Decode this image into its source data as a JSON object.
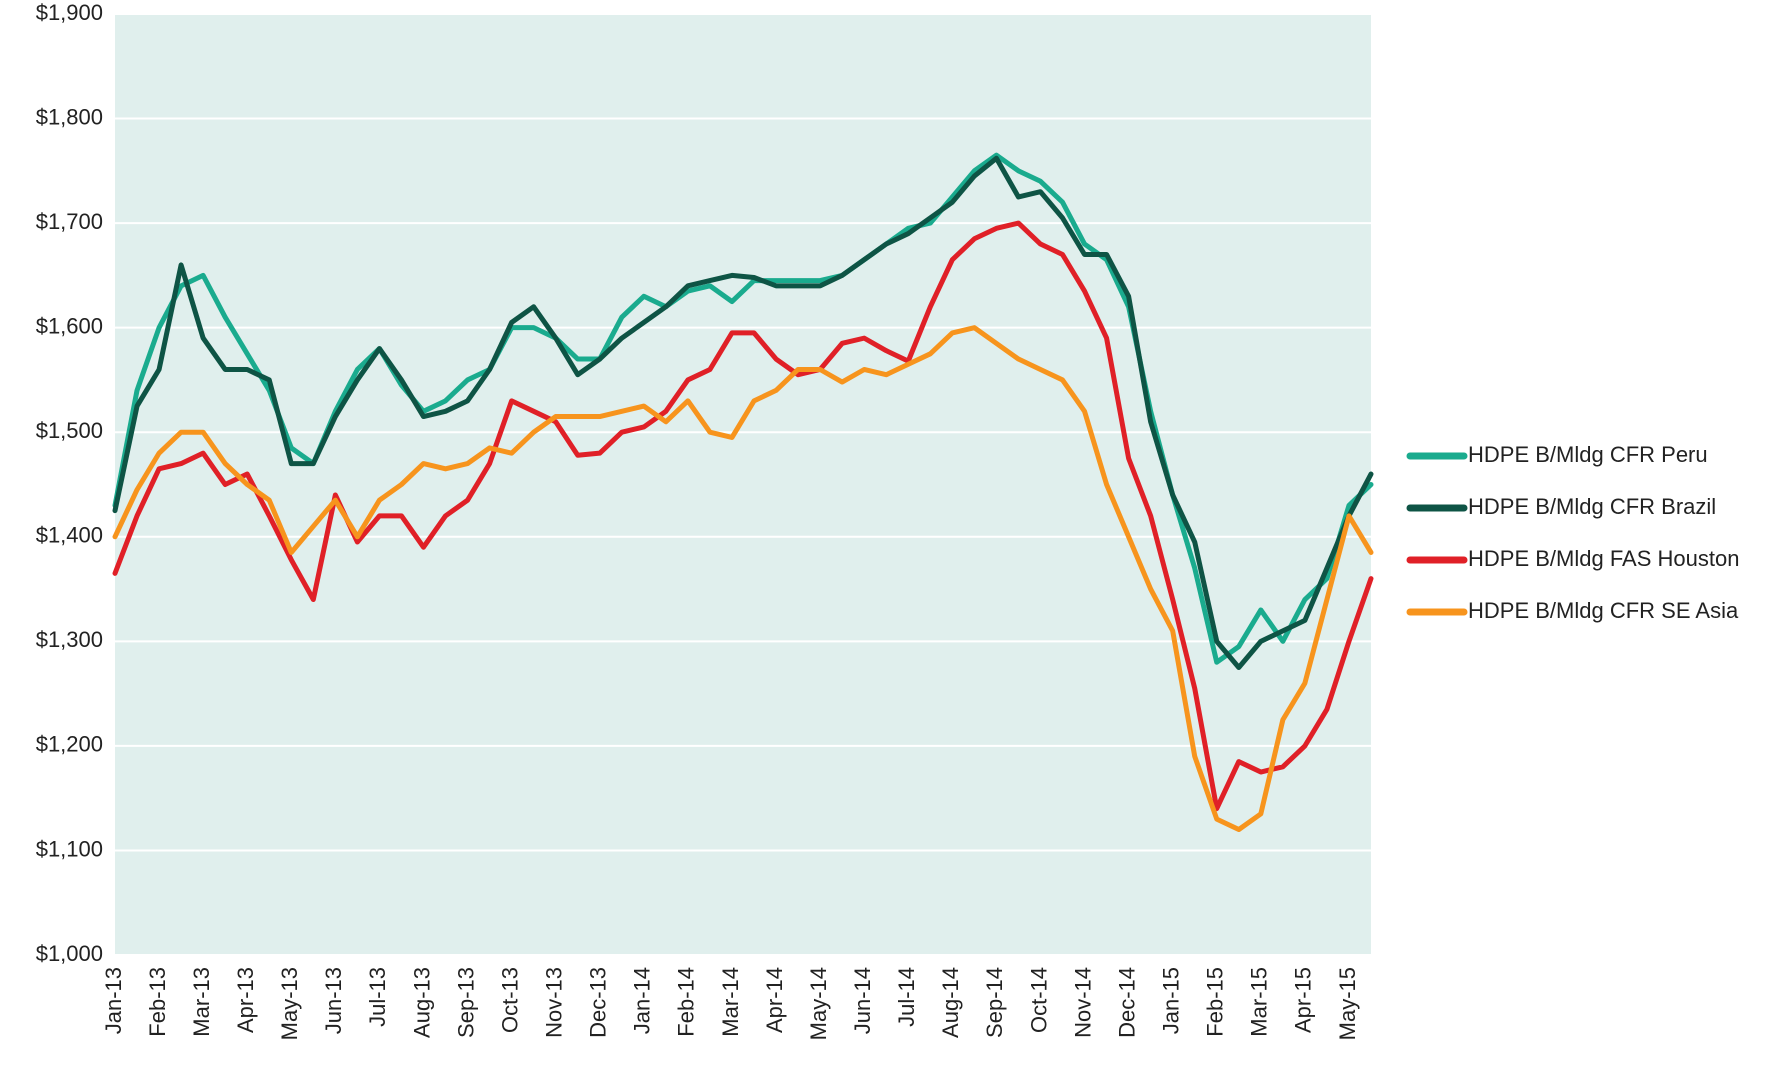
{
  "chart_data": {
    "type": "line",
    "categories": [
      "Jan-13",
      null,
      "Feb-13",
      null,
      "Mar-13",
      null,
      "Apr-13",
      null,
      "May-13",
      null,
      "Jun-13",
      null,
      "Jul-13",
      null,
      "Aug-13",
      null,
      "Sep-13",
      null,
      "Oct-13",
      null,
      "Nov-13",
      null,
      "Dec-13",
      null,
      "Jan-14",
      null,
      "Feb-14",
      null,
      "Mar-14",
      null,
      "Apr-14",
      null,
      "May-14",
      null,
      "Jun-14",
      null,
      "Jul-14",
      null,
      "Aug-14",
      null,
      "Sep-14",
      null,
      "Oct-14",
      null,
      "Nov-14",
      null,
      "Dec-14",
      null,
      "Jan-15",
      null,
      "Feb-15",
      null,
      "Mar-15",
      null,
      "Apr-15",
      null,
      "May-15",
      null
    ],
    "series": [
      {
        "name": "HDPE B/Mldg CFR Peru",
        "color": "#1aab8e",
        "values": [
          1430,
          1540,
          1600,
          1640,
          1650,
          1610,
          1575,
          1540,
          1485,
          1470,
          1520,
          1560,
          1580,
          1545,
          1520,
          1530,
          1550,
          1560,
          1600,
          1600,
          1590,
          1570,
          1570,
          1610,
          1630,
          1620,
          1635,
          1640,
          1625,
          1645,
          1645,
          1645,
          1645,
          1650,
          1665,
          1680,
          1695,
          1700,
          1725,
          1750,
          1765,
          1750,
          1740,
          1720,
          1680,
          1665,
          1620,
          1520,
          1440,
          1370,
          1280,
          1295,
          1330,
          1300,
          1340,
          1360,
          1430,
          1450
        ]
      },
      {
        "name": "HDPE B/Mldg CFR Brazil",
        "color": "#0e5445",
        "values": [
          1425,
          1525,
          1560,
          1660,
          1590,
          1560,
          1560,
          1550,
          1470,
          1470,
          1515,
          1550,
          1580,
          1550,
          1515,
          1520,
          1530,
          1560,
          1605,
          1620,
          1590,
          1555,
          1570,
          1590,
          1605,
          1620,
          1640,
          1645,
          1650,
          1648,
          1640,
          1640,
          1640,
          1650,
          1665,
          1680,
          1690,
          1705,
          1720,
          1745,
          1762,
          1725,
          1730,
          1705,
          1670,
          1670,
          1630,
          1510,
          1440,
          1395,
          1300,
          1275,
          1300,
          1310,
          1320,
          1370,
          1420,
          1460
        ]
      },
      {
        "name": "HDPE B/Mldg FAS Houston",
        "color": "#e02027",
        "values": [
          1365,
          1420,
          1465,
          1470,
          1480,
          1450,
          1460,
          1420,
          1378,
          1340,
          1440,
          1395,
          1420,
          1420,
          1390,
          1420,
          1435,
          1470,
          1530,
          1520,
          1510,
          1478,
          1480,
          1500,
          1505,
          1520,
          1550,
          1560,
          1595,
          1595,
          1570,
          1555,
          1560,
          1585,
          1590,
          1578,
          1568,
          1620,
          1665,
          1685,
          1695,
          1700,
          1680,
          1670,
          1635,
          1590,
          1475,
          1420,
          1340,
          1255,
          1140,
          1185,
          1175,
          1180,
          1200,
          1235,
          1300,
          1360
        ]
      },
      {
        "name": "HDPE B/Mldg CFR SE Asia",
        "color": "#f7941d",
        "values": [
          1400,
          1445,
          1480,
          1500,
          1500,
          1470,
          1450,
          1435,
          1385,
          1410,
          1435,
          1400,
          1435,
          1450,
          1470,
          1465,
          1470,
          1485,
          1480,
          1500,
          1515,
          1515,
          1515,
          1520,
          1525,
          1510,
          1530,
          1500,
          1495,
          1530,
          1540,
          1560,
          1560,
          1548,
          1560,
          1555,
          1565,
          1575,
          1595,
          1600,
          1585,
          1570,
          1560,
          1550,
          1520,
          1450,
          1400,
          1350,
          1310,
          1190,
          1130,
          1120,
          1135,
          1225,
          1260,
          1340,
          1420,
          1385
        ]
      }
    ],
    "ylim": [
      1000,
      1900
    ],
    "yticks": [
      {
        "value": 1000,
        "label": "$1,000"
      },
      {
        "value": 1100,
        "label": "$1,100"
      },
      {
        "value": 1200,
        "label": "$1,200"
      },
      {
        "value": 1300,
        "label": "$1,300"
      },
      {
        "value": 1400,
        "label": "$1,400"
      },
      {
        "value": 1500,
        "label": "$1,500"
      },
      {
        "value": 1600,
        "label": "$1,600"
      },
      {
        "value": 1700,
        "label": "$1,700"
      },
      {
        "value": 1800,
        "label": "$1,800"
      },
      {
        "value": 1900,
        "label": "$1,900"
      }
    ],
    "grid": true,
    "legend": "right",
    "background": "#e0efed"
  }
}
